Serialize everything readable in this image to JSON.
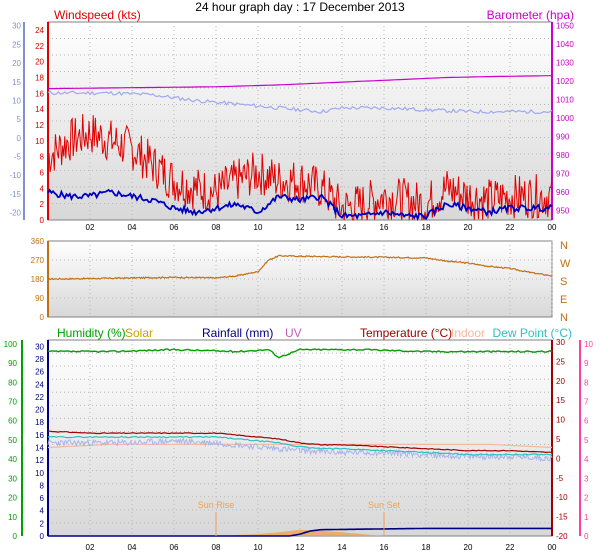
{
  "title": "24 hour graph day : 17 December 2013",
  "colors": {
    "wind": "#e00000",
    "gust": "#e00000",
    "avg_wind": "#0000c0",
    "barometer": "#cc00cc",
    "wind_dir": "#c07010",
    "humidity": "#00a000",
    "solar": "#c8a000",
    "rainfall": "#000080",
    "uv": "#c060c0",
    "temperature": "#a00000",
    "indoor": "#f4b8a0",
    "dew_point": "#30c0c0",
    "left_axis_top": "#8090d0",
    "right_axis_bottom": "#ff40a0",
    "sun": "#f0a050",
    "grid": "#b8b8b8"
  },
  "chart_data": [
    {
      "type": "line",
      "name": "wind-barometer",
      "series_labels": {
        "windspeed": "Windspeed (kts)",
        "barometer": "Barometer (hpa)"
      },
      "x_tick_labels": [
        "02",
        "04",
        "06",
        "08",
        "10",
        "12",
        "14",
        "16",
        "18",
        "20",
        "22",
        "00"
      ],
      "x_range_hours": [
        0,
        24
      ],
      "y_left_ticks": [
        "0",
        "2",
        "4",
        "6",
        "8",
        "10",
        "12",
        "14",
        "16",
        "18",
        "20",
        "22",
        "24"
      ],
      "y_left_range": [
        0,
        25
      ],
      "y_farleft_ticks": [
        "-20",
        "-15",
        "-10",
        "-5",
        "0",
        "5",
        "10",
        "15",
        "20",
        "25",
        "30"
      ],
      "y_farleft_range": [
        -22,
        31
      ],
      "y_right_ticks": [
        "950",
        "960",
        "970",
        "980",
        "990",
        "1000",
        "1010",
        "1020",
        "1030",
        "1040",
        "1050"
      ],
      "y_right_range": [
        945,
        1052
      ],
      "barometer": {
        "hours": [
          0,
          8,
          11,
          13,
          15,
          17,
          19,
          21,
          24
        ],
        "values": [
          1016,
          1017,
          1018,
          1019,
          1020,
          1021,
          1022,
          1022.5,
          1023
        ]
      },
      "gust": {
        "hours": [
          0,
          1,
          2,
          3,
          4,
          5,
          6,
          7,
          8,
          9,
          10,
          11,
          12,
          13,
          14,
          15,
          16,
          17,
          18,
          19,
          20,
          21,
          22,
          23,
          24
        ],
        "values": [
          8,
          10,
          11,
          10,
          9,
          7,
          5,
          4,
          3.5,
          5,
          6,
          5,
          5,
          4,
          1.5,
          2,
          3,
          2.5,
          2,
          4,
          3,
          2.5,
          3,
          3,
          3
        ]
      },
      "avg_wind": {
        "hours": [
          0,
          1,
          2,
          3,
          4,
          5,
          6,
          7,
          8,
          9,
          10,
          11,
          12,
          13,
          14,
          15,
          16,
          17,
          18,
          19,
          20,
          21,
          22,
          23,
          24
        ],
        "values": [
          3.5,
          3,
          3,
          3.5,
          3,
          2.5,
          1.5,
          1,
          1.5,
          2,
          1,
          3,
          2.5,
          3,
          0.5,
          0.5,
          1,
          0.5,
          0.5,
          2,
          1.5,
          1,
          1.5,
          1.5,
          1.5
        ]
      },
      "temp_trace": {
        "hours": [
          0,
          3,
          5,
          7,
          9,
          10,
          11,
          12,
          13,
          14,
          16,
          18,
          20,
          22,
          24
        ],
        "values": [
          12,
          12,
          11.5,
          10,
          9,
          8.5,
          8,
          7.5,
          7,
          8,
          8,
          7.5,
          7,
          7,
          7
        ]
      }
    },
    {
      "type": "line",
      "name": "wind-direction",
      "y_left_ticks": [
        "0",
        "90",
        "180",
        "270",
        "360"
      ],
      "y_left_range": [
        0,
        360
      ],
      "y_right_ticks": [
        "N",
        "W",
        "S",
        "E",
        "N"
      ],
      "series": {
        "hours": [
          0,
          2,
          4,
          6,
          8,
          9,
          10,
          10.5,
          11,
          12,
          14,
          16,
          18,
          19,
          20,
          21,
          22,
          23,
          24
        ],
        "values": [
          180,
          182,
          185,
          188,
          185,
          195,
          215,
          270,
          290,
          288,
          285,
          283,
          280,
          265,
          255,
          240,
          230,
          210,
          195
        ]
      }
    },
    {
      "type": "line",
      "name": "humidity-temperature",
      "series_labels": {
        "humidity": "Humidity (%)",
        "solar": "Solar",
        "rainfall": "Rainfall (mm)",
        "uv": "UV",
        "temperature": "Temperature (°C)",
        "indoor": "Indoor",
        "dew_point": "Dew Point (°C)"
      },
      "annotations": {
        "sunrise": "Sun Rise",
        "sunset": "Sun Set"
      },
      "sunrise_hour": 8,
      "sunset_hour": 16,
      "x_tick_labels": [
        "02",
        "04",
        "06",
        "08",
        "10",
        "12",
        "14",
        "16",
        "18",
        "20",
        "22",
        "00"
      ],
      "y_left_ticks": [
        "0",
        "10",
        "20",
        "30",
        "40",
        "50",
        "60",
        "70",
        "80",
        "90",
        "100"
      ],
      "y_left_range": [
        0,
        102
      ],
      "y_mid_ticks": [
        "0",
        "2",
        "4",
        "6",
        "8",
        "10",
        "12",
        "14",
        "16",
        "18",
        "20",
        "22",
        "24",
        "26",
        "28",
        "30"
      ],
      "y_mid_range": [
        0,
        31
      ],
      "y_right_ticks": [
        "-20",
        "-15",
        "-10",
        "-5",
        "0",
        "5",
        "10",
        "15",
        "20",
        "25",
        "30"
      ],
      "y_right_range": [
        -20,
        30.5
      ],
      "y_farright_ticks": [
        "0",
        "1",
        "2",
        "3",
        "4",
        "5",
        "6",
        "7",
        "8",
        "9",
        "10"
      ],
      "y_farright_range": [
        0,
        10.2
      ],
      "humidity": {
        "hours": [
          0,
          3,
          6,
          9,
          10.5,
          11,
          12,
          15,
          18,
          21,
          24
        ],
        "values": [
          96,
          96,
          97,
          96,
          97,
          93,
          97,
          97,
          96,
          96,
          96
        ]
      },
      "temperature": {
        "hours": [
          0,
          2,
          4,
          6,
          8,
          9,
          10,
          11,
          12,
          13,
          14,
          16,
          18,
          20,
          22,
          24
        ],
        "values": [
          7,
          6.5,
          6.5,
          6.5,
          6.5,
          6,
          5.5,
          5,
          4,
          3.5,
          3.5,
          3,
          2.5,
          2,
          2,
          1.5
        ]
      },
      "dew_point": {
        "hours": [
          0,
          2,
          4,
          6,
          8,
          9,
          10,
          11,
          12,
          13,
          14,
          16,
          18,
          20,
          22,
          24
        ],
        "values": [
          5.5,
          5.5,
          5.5,
          5.5,
          5.5,
          5,
          4.5,
          4,
          3,
          2.5,
          2.5,
          2,
          1.5,
          1,
          1,
          1
        ]
      },
      "apparent": {
        "hours": [
          0,
          2,
          4,
          6,
          8,
          10,
          12,
          14,
          16,
          18,
          20,
          22,
          24
        ],
        "values": [
          4,
          4,
          4,
          4.5,
          4,
          3,
          2,
          1.5,
          1.5,
          1,
          0.5,
          0.5,
          0
        ]
      },
      "indoor": {
        "hours": [
          0,
          3,
          6,
          9,
          12,
          15,
          18,
          21,
          24
        ],
        "values": [
          14,
          14.5,
          14.5,
          14.5,
          14.5,
          14.5,
          14.5,
          14.5,
          14
        ]
      },
      "rainfall": {
        "hours": [
          0,
          11.5,
          12,
          12.5,
          13,
          18,
          24
        ],
        "values": [
          0,
          0,
          0.3,
          0.8,
          1.0,
          1.2,
          1.2
        ]
      },
      "solar": {
        "hours": [
          8,
          10,
          11,
          12,
          13,
          14,
          15,
          16
        ],
        "values": [
          0,
          0.3,
          0.6,
          1.0,
          0.8,
          0.6,
          0.3,
          0
        ]
      }
    }
  ]
}
